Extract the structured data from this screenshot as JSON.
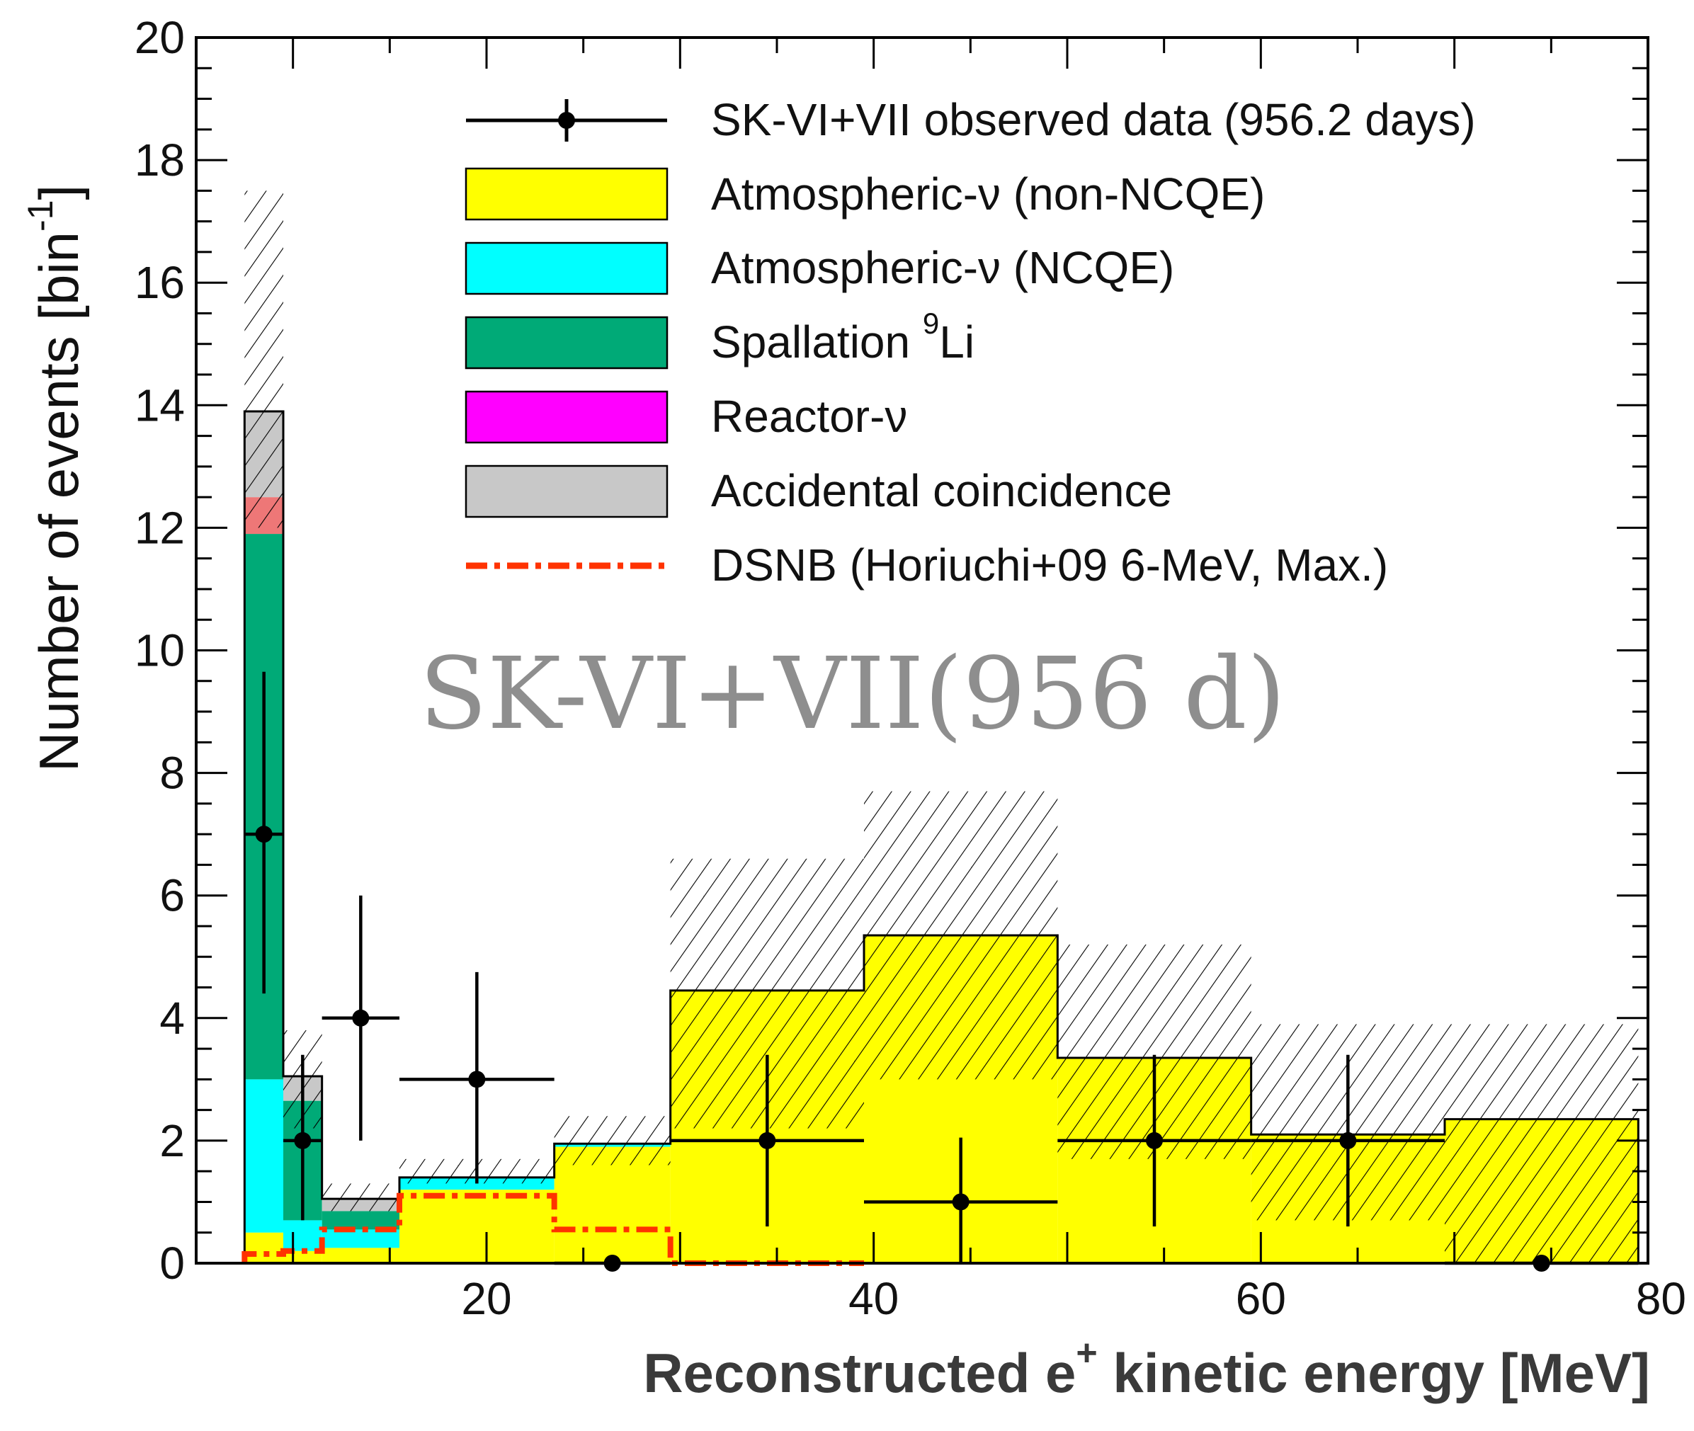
{
  "chart_data": {
    "type": "histogram",
    "xlabel": "Reconstructed e",
    "xlabel_sup": "+",
    "xlabel_suffix": " kinetic energy [MeV]",
    "ylabel": "Number of events [bin",
    "ylabel_sup": "-1",
    "ylabel_suffix": "]",
    "xlim": [
      5,
      80
    ],
    "ylim": [
      0,
      20
    ],
    "xticks": [
      20,
      40,
      60,
      80
    ],
    "yticks": [
      0,
      2,
      4,
      6,
      8,
      10,
      12,
      14,
      16,
      18,
      20
    ],
    "watermark": "SK-VI+VII(956 d)",
    "bins": [
      {
        "lo": 7.5,
        "hi": 9.5,
        "atm_nonncqe": 0.5,
        "ncqe": 2.5,
        "spall": 8.9,
        "reactor": 0.6,
        "accidental": 1.4,
        "band_lo": 12.0,
        "band_hi": 17.5
      },
      {
        "lo": 9.5,
        "hi": 11.5,
        "atm_nonncqe": 0.2,
        "ncqe": 0.5,
        "spall": 1.95,
        "reactor": 0.0,
        "accidental": 0.4,
        "band_lo": 2.2,
        "band_hi": 3.8
      },
      {
        "lo": 11.5,
        "hi": 15.5,
        "atm_nonncqe": 0.25,
        "ncqe": 0.3,
        "spall": 0.3,
        "reactor": 0.0,
        "accidental": 0.2,
        "band_lo": 0.85,
        "band_hi": 1.3
      },
      {
        "lo": 15.5,
        "hi": 23.5,
        "atm_nonncqe": 1.2,
        "ncqe": 0.2,
        "spall": 0.0,
        "reactor": 0.0,
        "accidental": 0.0,
        "band_lo": 1.3,
        "band_hi": 1.7
      },
      {
        "lo": 23.5,
        "hi": 29.5,
        "atm_nonncqe": 1.9,
        "ncqe": 0.05,
        "spall": 0.0,
        "reactor": 0.0,
        "accidental": 0.0,
        "band_lo": 1.6,
        "band_hi": 2.4
      },
      {
        "lo": 29.5,
        "hi": 39.5,
        "atm_nonncqe": 4.45,
        "ncqe": 0.0,
        "spall": 0.0,
        "reactor": 0.0,
        "accidental": 0.0,
        "band_lo": 2.2,
        "band_hi": 6.6
      },
      {
        "lo": 39.5,
        "hi": 49.5,
        "atm_nonncqe": 5.35,
        "ncqe": 0.0,
        "spall": 0.0,
        "reactor": 0.0,
        "accidental": 0.0,
        "band_lo": 3.0,
        "band_hi": 7.7
      },
      {
        "lo": 49.5,
        "hi": 59.5,
        "atm_nonncqe": 3.35,
        "ncqe": 0.0,
        "spall": 0.0,
        "reactor": 0.0,
        "accidental": 0.0,
        "band_lo": 1.7,
        "band_hi": 5.2
      },
      {
        "lo": 59.5,
        "hi": 69.5,
        "atm_nonncqe": 2.1,
        "ncqe": 0.0,
        "spall": 0.0,
        "reactor": 0.0,
        "accidental": 0.0,
        "band_lo": 0.7,
        "band_hi": 3.9
      },
      {
        "lo": 69.5,
        "hi": 79.5,
        "atm_nonncqe": 2.35,
        "ncqe": 0.0,
        "spall": 0.0,
        "reactor": 0.0,
        "accidental": 0.0,
        "band_lo": 0.0,
        "band_hi": 3.9
      }
    ],
    "dsnb": [
      {
        "lo": 7.5,
        "hi": 9.5,
        "value": 0.15
      },
      {
        "lo": 9.5,
        "hi": 11.5,
        "value": 0.2
      },
      {
        "lo": 11.5,
        "hi": 15.5,
        "value": 0.55
      },
      {
        "lo": 15.5,
        "hi": 23.5,
        "value": 1.1
      },
      {
        "lo": 23.5,
        "hi": 29.5,
        "value": 0.55
      },
      {
        "lo": 29.5,
        "hi": 39.5,
        "value": 0.0
      }
    ],
    "data_points": [
      {
        "x": 8.5,
        "xerr": 1.0,
        "y": 7,
        "yerr_lo": 2.6,
        "yerr_hi": 2.65
      },
      {
        "x": 10.5,
        "xerr": 1.0,
        "y": 2,
        "yerr_lo": 1.3,
        "yerr_hi": 1.4
      },
      {
        "x": 13.5,
        "xerr": 2.0,
        "y": 4,
        "yerr_lo": 2.0,
        "yerr_hi": 2.0
      },
      {
        "x": 19.5,
        "xerr": 4.0,
        "y": 3,
        "yerr_lo": 1.7,
        "yerr_hi": 1.75
      },
      {
        "x": 26.5,
        "xerr": 3.0,
        "y": 0,
        "yerr_lo": 0,
        "yerr_hi": 0
      },
      {
        "x": 34.5,
        "xerr": 5.0,
        "y": 2,
        "yerr_lo": 1.4,
        "yerr_hi": 1.4
      },
      {
        "x": 44.5,
        "xerr": 5.0,
        "y": 1,
        "yerr_lo": 1.0,
        "yerr_hi": 1.05
      },
      {
        "x": 54.5,
        "xerr": 5.0,
        "y": 2,
        "yerr_lo": 1.4,
        "yerr_hi": 1.4
      },
      {
        "x": 64.5,
        "xerr": 5.0,
        "y": 2,
        "yerr_lo": 1.4,
        "yerr_hi": 1.4
      },
      {
        "x": 74.5,
        "xerr": 5.0,
        "y": 0,
        "yerr_lo": 0,
        "yerr_hi": 0
      }
    ],
    "legend": [
      {
        "key": "data",
        "label": "SK-VI+VII observed data (956.2 days)"
      },
      {
        "key": "atm_nonncqe",
        "label": "Atmospheric-ν (non-NCQE)"
      },
      {
        "key": "ncqe",
        "label": "Atmospheric-ν (NCQE)"
      },
      {
        "key": "spall",
        "label": "Spallation ",
        "sup": "9",
        "suffix": "Li"
      },
      {
        "key": "reactor",
        "label": "Reactor-ν"
      },
      {
        "key": "accidental",
        "label": "Accidental coincidence"
      },
      {
        "key": "dsnb",
        "label": "DSNB (Horiuchi+09 6-MeV, Max.)"
      }
    ],
    "colors": {
      "atm_nonncqe": "#ffff00",
      "ncqe": "#00ffff",
      "spall": "#00aa77",
      "reactor": "#ee7777",
      "reactor_legend": "#ff00ff",
      "accidental": "#c8c8c8",
      "dsnb": "#ff3300",
      "data": "#000000"
    }
  }
}
